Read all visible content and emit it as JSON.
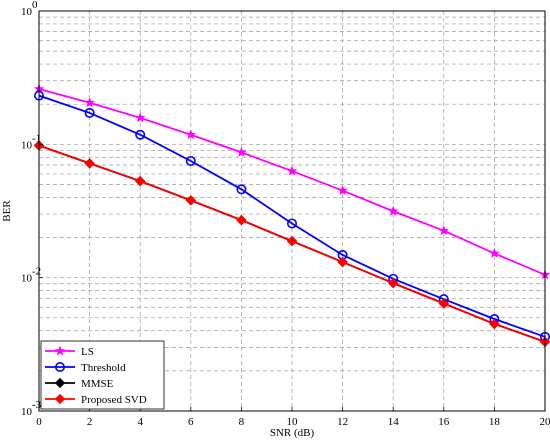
{
  "chart_data": {
    "type": "line",
    "title": "",
    "xlabel": "SNR (dB)",
    "ylabel": "BER",
    "x": [
      0,
      2,
      4,
      6,
      8,
      10,
      12,
      14,
      16,
      18,
      20
    ],
    "xlim": [
      0,
      20
    ],
    "ylim": [
      0.001,
      1
    ],
    "yscale": "log",
    "grid": true,
    "grid_style": "dashed",
    "legend_position": "bottom-left",
    "x_ticks": [
      "0",
      "2",
      "4",
      "6",
      "8",
      "10",
      "12",
      "14",
      "16",
      "18",
      "20"
    ],
    "y_ticks": [
      {
        "base": "10",
        "exp": "-3"
      },
      {
        "base": "10",
        "exp": "-2"
      },
      {
        "base": "10",
        "exp": "-1"
      },
      {
        "base": "10",
        "exp": "0"
      }
    ],
    "series": [
      {
        "name": "LS",
        "color": "#ff00ff",
        "marker": "star",
        "values": [
          0.26,
          0.205,
          0.158,
          0.118,
          0.087,
          0.063,
          0.045,
          0.0315,
          0.0225,
          0.0152,
          0.0105
        ]
      },
      {
        "name": "Threshold",
        "color": "#0000ff",
        "marker": "circle",
        "values": [
          0.232,
          0.172,
          0.118,
          0.075,
          0.046,
          0.0255,
          0.0148,
          0.0098,
          0.0069,
          0.0049,
          0.0036
        ]
      },
      {
        "name": "MMSE",
        "color": "#000000",
        "marker": "diamond",
        "values": [
          0.098,
          0.072,
          0.053,
          0.038,
          0.027,
          0.0188,
          0.0131,
          0.0091,
          0.0064,
          0.0045,
          0.0033
        ]
      },
      {
        "name": "Proposed SVD",
        "color": "#ff0000",
        "marker": "diamond",
        "values": [
          0.098,
          0.072,
          0.053,
          0.038,
          0.027,
          0.0188,
          0.0131,
          0.0091,
          0.0064,
          0.0045,
          0.0033
        ]
      }
    ]
  }
}
